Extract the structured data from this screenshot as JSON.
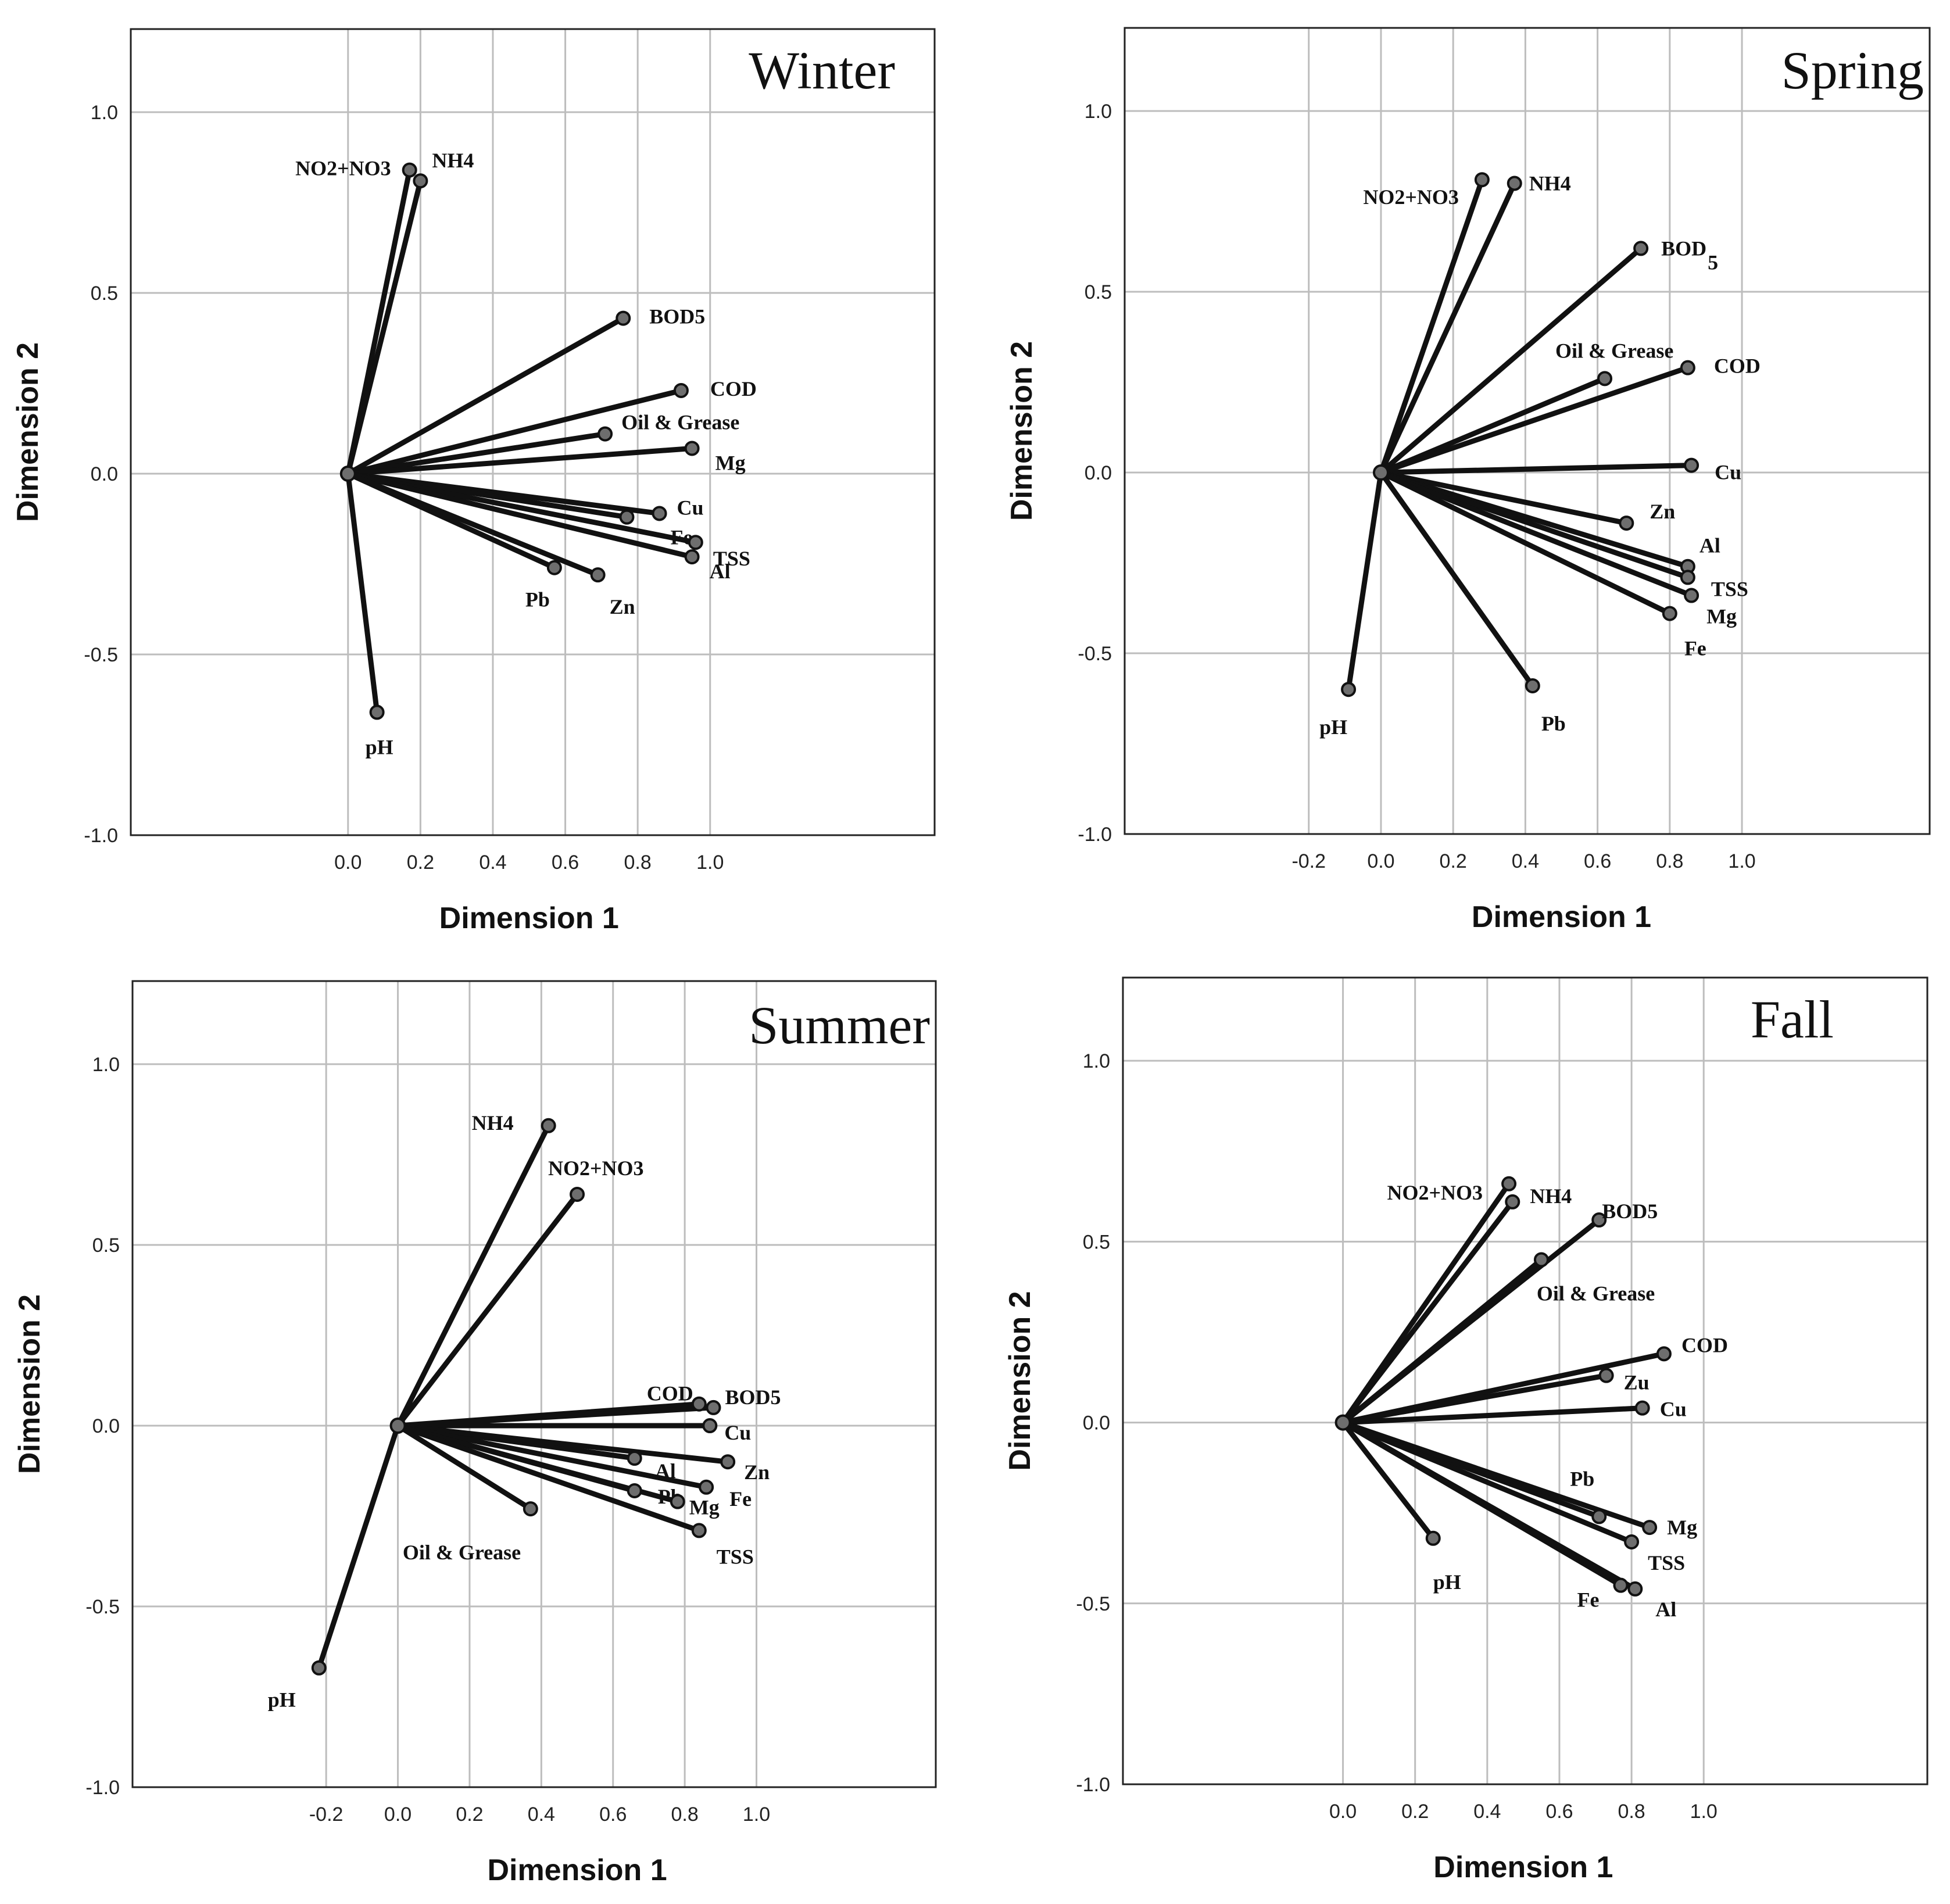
{
  "chart_data": [
    {
      "type": "scatter",
      "title": "Winter",
      "xlabel": "Dimension 1",
      "ylabel": "Dimension 2",
      "xticks": [
        "0.0",
        "0.2",
        "0.4",
        "0.6",
        "0.8",
        "1.0"
      ],
      "yticks": [
        "1.0",
        "0.5",
        "0.0",
        "-0.5",
        "-1.0"
      ],
      "xlim": [
        -0.6,
        1.62
      ],
      "ylim": [
        -1.0,
        1.23
      ],
      "grid": true,
      "vectors": [
        {
          "name": "NO2+NO3",
          "x": 0.17,
          "y": 0.84
        },
        {
          "name": "NH4",
          "x": 0.2,
          "y": 0.81
        },
        {
          "name": "BOD5",
          "x": 0.76,
          "y": 0.43
        },
        {
          "name": "COD",
          "x": 0.92,
          "y": 0.23
        },
        {
          "name": "Oil & Grease",
          "x": 0.71,
          "y": 0.11
        },
        {
          "name": "Mg",
          "x": 0.95,
          "y": 0.07
        },
        {
          "name": "Cu",
          "x": 0.86,
          "y": -0.11
        },
        {
          "name": "Fe",
          "x": 0.77,
          "y": -0.12
        },
        {
          "name": "TSS",
          "x": 0.96,
          "y": -0.19
        },
        {
          "name": "Al",
          "x": 0.95,
          "y": -0.23
        },
        {
          "name": "Pb",
          "x": 0.57,
          "y": -0.26
        },
        {
          "name": "Zn",
          "x": 0.69,
          "y": -0.28
        },
        {
          "name": "pH",
          "x": 0.08,
          "y": -0.66
        }
      ]
    },
    {
      "type": "scatter",
      "title": "Spring",
      "xlabel": "Dimension 1",
      "ylabel": "Dimension 2",
      "xticks": [
        "-0.2",
        "0.0",
        "0.2",
        "0.4",
        "0.6",
        "0.8",
        "1.0"
      ],
      "yticks": [
        "1.0",
        "0.5",
        "0.0",
        "-0.5",
        "-1.0"
      ],
      "xlim": [
        -0.71,
        1.52
      ],
      "ylim": [
        -1.0,
        1.23
      ],
      "grid": true,
      "vectors": [
        {
          "name": "NO2+NO3",
          "x": 0.28,
          "y": 0.81
        },
        {
          "name": "NH4",
          "x": 0.37,
          "y": 0.8
        },
        {
          "name": "BOD",
          "x": 0.72,
          "y": 0.62
        },
        {
          "name": "Oil & Grease",
          "x": 0.62,
          "y": 0.26
        },
        {
          "name": "COD",
          "x": 0.85,
          "y": 0.29
        },
        {
          "name": "Cu",
          "x": 0.86,
          "y": 0.02
        },
        {
          "name": "Zn",
          "x": 0.68,
          "y": -0.14
        },
        {
          "name": "Al",
          "x": 0.85,
          "y": -0.26
        },
        {
          "name": "TSS",
          "x": 0.85,
          "y": -0.29
        },
        {
          "name": "Mg",
          "x": 0.86,
          "y": -0.34
        },
        {
          "name": "Fe",
          "x": 0.8,
          "y": -0.39
        },
        {
          "name": "Pb",
          "x": 0.42,
          "y": -0.59
        },
        {
          "name": "pH",
          "x": -0.09,
          "y": -0.6
        }
      ]
    },
    {
      "type": "scatter",
      "title": "Summer",
      "xlabel": "Dimension 1",
      "ylabel": "Dimension 2",
      "xticks": [
        "-0.2",
        "0.0",
        "0.2",
        "0.4",
        "0.6",
        "0.8",
        "1.0"
      ],
      "yticks": [
        "1.0",
        "0.5",
        "0.0",
        "-0.5",
        "-1.0"
      ],
      "xlim": [
        -0.74,
        1.5
      ],
      "ylim": [
        -1.0,
        1.23
      ],
      "grid": true,
      "vectors": [
        {
          "name": "NH4",
          "x": 0.42,
          "y": 0.83
        },
        {
          "name": "NO2+NO3",
          "x": 0.5,
          "y": 0.64
        },
        {
          "name": "COD",
          "x": 0.84,
          "y": 0.06
        },
        {
          "name": "BOD5",
          "x": 0.88,
          "y": 0.05
        },
        {
          "name": "Cu",
          "x": 0.87,
          "y": 0.0
        },
        {
          "name": "Al",
          "x": 0.66,
          "y": -0.09
        },
        {
          "name": "Zn",
          "x": 0.92,
          "y": -0.1
        },
        {
          "name": "Fe",
          "x": 0.86,
          "y": -0.17
        },
        {
          "name": "Pb",
          "x": 0.66,
          "y": -0.18
        },
        {
          "name": "Mg",
          "x": 0.78,
          "y": -0.21
        },
        {
          "name": "TSS",
          "x": 0.84,
          "y": -0.29
        },
        {
          "name": "Oil & Grease",
          "x": 0.37,
          "y": -0.23
        },
        {
          "name": "pH",
          "x": -0.22,
          "y": -0.67
        }
      ]
    },
    {
      "type": "scatter",
      "title": "Fall",
      "xlabel": "Dimension 1",
      "ylabel": "Dimension 2",
      "xticks": [
        "0.0",
        "0.2",
        "0.4",
        "0.6",
        "0.8",
        "1.0"
      ],
      "yticks": [
        "1.0",
        "0.5",
        "0.0",
        "-0.5",
        "-1.0"
      ],
      "xlim": [
        -0.61,
        1.62
      ],
      "ylim": [
        -1.0,
        1.23
      ],
      "grid": true,
      "vectors": [
        {
          "name": "NO2+NO3",
          "x": 0.46,
          "y": 0.66
        },
        {
          "name": "NH4",
          "x": 0.47,
          "y": 0.61
        },
        {
          "name": "BOD5",
          "x": 0.71,
          "y": 0.56
        },
        {
          "name": "Oil & Grease",
          "x": 0.55,
          "y": 0.45
        },
        {
          "name": "COD",
          "x": 0.89,
          "y": 0.19
        },
        {
          "name": "Zu",
          "x": 0.73,
          "y": 0.13
        },
        {
          "name": "Cu",
          "x": 0.83,
          "y": 0.04
        },
        {
          "name": "Pb",
          "x": 0.71,
          "y": -0.26
        },
        {
          "name": "Mg",
          "x": 0.85,
          "y": -0.29
        },
        {
          "name": "TSS",
          "x": 0.8,
          "y": -0.33
        },
        {
          "name": "Fe",
          "x": 0.77,
          "y": -0.45
        },
        {
          "name": "Al",
          "x": 0.81,
          "y": -0.46
        },
        {
          "name": "pH",
          "x": 0.25,
          "y": -0.32
        }
      ]
    }
  ],
  "subscripts": {
    "spring_bod": "5"
  }
}
